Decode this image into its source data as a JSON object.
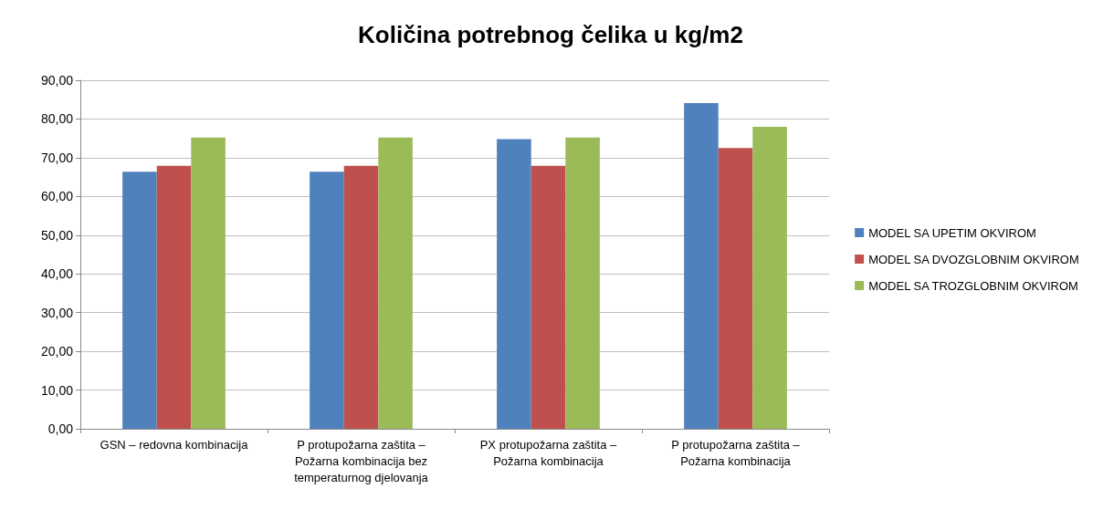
{
  "chart_data": {
    "type": "bar",
    "title": "Količina potrebnog čelika u kg/m2",
    "categories": [
      "GSN – redovna kombinacija",
      "P protupožarna zaštita – Požarna kombinacija bez temperaturnog djelovanja",
      "PX protupožarna zaštita – Požarna kombinacija",
      "P protupožarna zaštita – Požarna kombinacija"
    ],
    "series": [
      {
        "name": "MODEL SA UPETIM OKVIROM",
        "color": "#4f81bd",
        "values": [
          66.4,
          66.4,
          74.8,
          84.1
        ]
      },
      {
        "name": "MODEL SA DVOZGLOBNIM OKVIROM",
        "color": "#c0504d",
        "values": [
          67.9,
          67.9,
          67.9,
          72.5
        ]
      },
      {
        "name": "MODEL SA TROZGLOBNIM OKVIROM",
        "color": "#9bbb59",
        "values": [
          75.2,
          75.2,
          75.2,
          78.0
        ]
      }
    ],
    "ylim": [
      0,
      90
    ],
    "yticks": [
      {
        "value": 0,
        "label": "0,00"
      },
      {
        "value": 10,
        "label": "10,00"
      },
      {
        "value": 20,
        "label": "20,00"
      },
      {
        "value": 30,
        "label": "30,00"
      },
      {
        "value": 40,
        "label": "40,00"
      },
      {
        "value": 50,
        "label": "50,00"
      },
      {
        "value": 60,
        "label": "60,00"
      },
      {
        "value": 70,
        "label": "70,00"
      },
      {
        "value": 80,
        "label": "80,00"
      },
      {
        "value": 90,
        "label": "90,00"
      }
    ],
    "grid": "y",
    "legend": "right"
  }
}
